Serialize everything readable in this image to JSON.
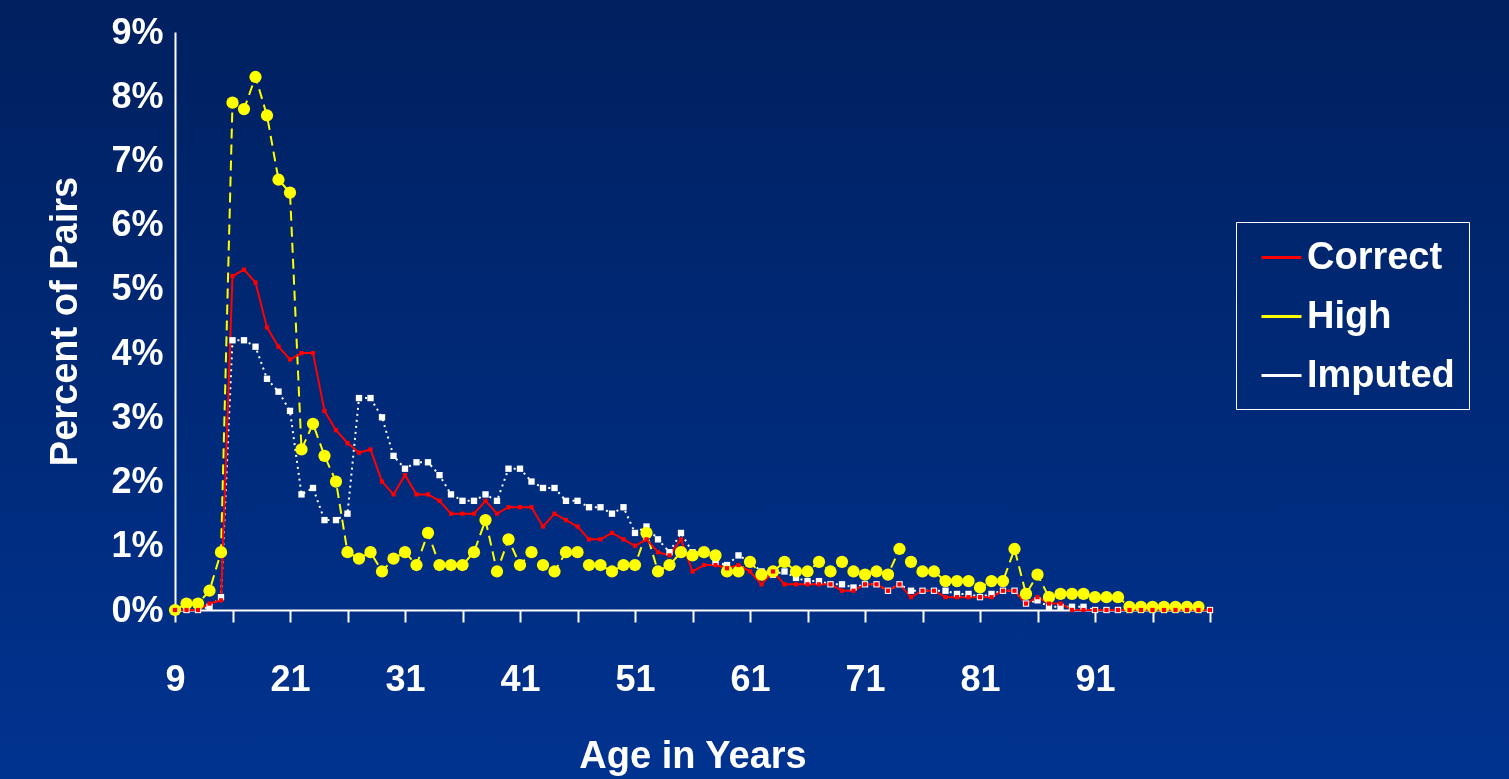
{
  "chart_data": {
    "type": "line",
    "xlabel": "Age in Years",
    "ylabel": "Percent of  Pairs",
    "categories": [
      "9",
      null,
      null,
      null,
      null,
      null,
      null,
      null,
      null,
      null,
      "21",
      null,
      null,
      null,
      null,
      null,
      null,
      null,
      null,
      null,
      "31",
      null,
      null,
      null,
      null,
      null,
      null,
      null,
      null,
      null,
      "41",
      null,
      null,
      null,
      null,
      null,
      null,
      null,
      null,
      null,
      "51",
      null,
      null,
      null,
      null,
      null,
      null,
      null,
      null,
      null,
      "61",
      null,
      null,
      null,
      null,
      null,
      null,
      null,
      null,
      null,
      "71",
      null,
      null,
      null,
      null,
      null,
      null,
      null,
      null,
      null,
      "81",
      null,
      null,
      null,
      null,
      null,
      null,
      null,
      null,
      null,
      "91",
      null,
      null,
      null,
      null,
      null,
      null,
      null,
      null,
      null,
      null
    ],
    "ylim": [
      0,
      9
    ],
    "yticks": [
      {
        "value": 0,
        "label": "0%"
      },
      {
        "value": 1,
        "label": "1%"
      },
      {
        "value": 2,
        "label": "2%"
      },
      {
        "value": 3,
        "label": "3%"
      },
      {
        "value": 4,
        "label": "4%"
      },
      {
        "value": 5,
        "label": "5%"
      },
      {
        "value": 6,
        "label": "6%"
      },
      {
        "value": 7,
        "label": "7%"
      },
      {
        "value": 8,
        "label": "8%"
      },
      {
        "value": 9,
        "label": "9%"
      }
    ],
    "grid": false,
    "legend": "right",
    "series": [
      {
        "name": "Correct",
        "color": "#ff0000",
        "line_style": "solid",
        "marker": "square",
        "values": [
          0,
          0,
          0,
          0.1,
          0.15,
          5.2,
          5.3,
          5.1,
          4.4,
          4.1,
          3.9,
          4.0,
          4.0,
          3.1,
          2.8,
          2.6,
          2.45,
          2.5,
          2.0,
          1.8,
          2.1,
          1.8,
          1.8,
          1.7,
          1.5,
          1.5,
          1.5,
          1.7,
          1.5,
          1.6,
          1.6,
          1.6,
          1.3,
          1.5,
          1.4,
          1.3,
          1.1,
          1.1,
          1.2,
          1.1,
          1.0,
          1.1,
          0.9,
          0.85,
          1.1,
          0.6,
          0.7,
          0.7,
          0.65,
          0.7,
          0.6,
          0.4,
          0.6,
          0.4,
          0.4,
          0.4,
          0.4,
          0.4,
          0.3,
          0.3,
          0.4,
          0.4,
          0.3,
          0.4,
          0.2,
          0.3,
          0.3,
          0.2,
          0.2,
          0.2,
          0.2,
          0.2,
          0.3,
          0.3,
          0.1,
          0.2,
          0.1,
          0.1,
          0,
          0,
          0,
          0,
          0,
          0,
          0,
          0,
          0,
          0,
          0,
          0,
          0
        ]
      },
      {
        "name": "High",
        "color": "#ffff00",
        "line_style": "dashed",
        "marker": "circle",
        "values": [
          0,
          0.1,
          0.1,
          0.3,
          0.9,
          7.9,
          7.8,
          8.3,
          7.7,
          6.7,
          6.5,
          2.5,
          2.9,
          2.4,
          2.0,
          0.9,
          0.8,
          0.9,
          0.6,
          0.8,
          0.9,
          0.7,
          1.2,
          0.7,
          0.7,
          0.7,
          0.9,
          1.4,
          0.6,
          1.1,
          0.7,
          0.9,
          0.7,
          0.6,
          0.9,
          0.9,
          0.7,
          0.7,
          0.6,
          0.7,
          0.7,
          1.2,
          0.6,
          0.7,
          0.9,
          0.85,
          0.9,
          0.85,
          0.6,
          0.6,
          0.75,
          0.55,
          0.6,
          0.75,
          0.6,
          0.6,
          0.75,
          0.6,
          0.75,
          0.6,
          0.55,
          0.6,
          0.55,
          0.95,
          0.75,
          0.6,
          0.6,
          0.45,
          0.45,
          0.45,
          0.35,
          0.45,
          0.45,
          0.95,
          0.25,
          0.55,
          0.2,
          0.25,
          0.25,
          0.25,
          0.2,
          0.2,
          0.2,
          0.05,
          0.05,
          0.05,
          0.05,
          0.05,
          0.05,
          0.05,
          null
        ]
      },
      {
        "name": "Imputed",
        "color": "#ffffff",
        "line_style": "dotted",
        "marker": "square",
        "values": [
          0,
          0,
          0,
          0.05,
          0.2,
          4.2,
          4.2,
          4.1,
          3.6,
          3.4,
          3.1,
          1.8,
          1.9,
          1.4,
          1.4,
          1.5,
          3.3,
          3.3,
          3.0,
          2.4,
          2.2,
          2.3,
          2.3,
          2.1,
          1.8,
          1.7,
          1.7,
          1.8,
          1.7,
          2.2,
          2.2,
          2.0,
          1.9,
          1.9,
          1.7,
          1.7,
          1.6,
          1.6,
          1.5,
          1.6,
          1.2,
          1.3,
          1.1,
          0.9,
          1.2,
          0.9,
          0.9,
          0.75,
          0.7,
          0.85,
          0.75,
          0.6,
          0.55,
          0.6,
          0.5,
          0.45,
          0.45,
          0.4,
          0.4,
          0.35,
          0.4,
          0.4,
          0.3,
          0.4,
          0.3,
          0.3,
          0.3,
          0.3,
          0.25,
          0.25,
          0.2,
          0.25,
          0.3,
          0.3,
          0.1,
          0.15,
          0.05,
          0.05,
          0.05,
          0.05,
          0,
          0,
          0,
          0,
          0,
          0,
          0,
          0,
          0,
          0,
          0
        ]
      }
    ]
  }
}
